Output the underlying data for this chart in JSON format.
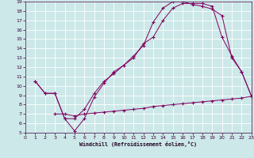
{
  "xlabel": "Windchill (Refroidissement éolien,°C)",
  "bg_color": "#cce8e8",
  "line_color": "#800060",
  "grid_color": "#ffffff",
  "xmin": 0,
  "xmax": 23,
  "ymin": 5,
  "ymax": 19,
  "line1_x": [
    1,
    2,
    3,
    4,
    5,
    6,
    7,
    8,
    9,
    10,
    11,
    12,
    13,
    14,
    15,
    16,
    17,
    18,
    19,
    20,
    21,
    22,
    23
  ],
  "line1_y": [
    10.5,
    9.2,
    9.2,
    6.5,
    5.2,
    6.5,
    8.8,
    10.3,
    11.5,
    12.2,
    13.2,
    14.3,
    16.8,
    18.3,
    19.0,
    19.0,
    18.7,
    18.5,
    18.2,
    17.5,
    13.0,
    11.5,
    8.9
  ],
  "line2_x": [
    1,
    2,
    3,
    4,
    5,
    6,
    7,
    8,
    9,
    10,
    11,
    12,
    13,
    14,
    15,
    16,
    17,
    18,
    19,
    20,
    21,
    22,
    23
  ],
  "line2_y": [
    10.5,
    9.2,
    9.2,
    6.5,
    6.5,
    7.5,
    9.2,
    10.5,
    11.3,
    12.2,
    13.0,
    14.5,
    15.2,
    17.0,
    18.3,
    18.8,
    18.8,
    18.8,
    18.5,
    15.2,
    13.2,
    11.5,
    8.9
  ],
  "line3_x": [
    3,
    4,
    5,
    6,
    7,
    8,
    9,
    10,
    11,
    12,
    13,
    14,
    15,
    16,
    17,
    18,
    19,
    20,
    21,
    22,
    23
  ],
  "line3_y": [
    7.0,
    7.0,
    6.8,
    7.0,
    7.1,
    7.2,
    7.3,
    7.4,
    7.5,
    7.6,
    7.8,
    7.9,
    8.0,
    8.1,
    8.2,
    8.3,
    8.4,
    8.5,
    8.6,
    8.7,
    8.9
  ]
}
